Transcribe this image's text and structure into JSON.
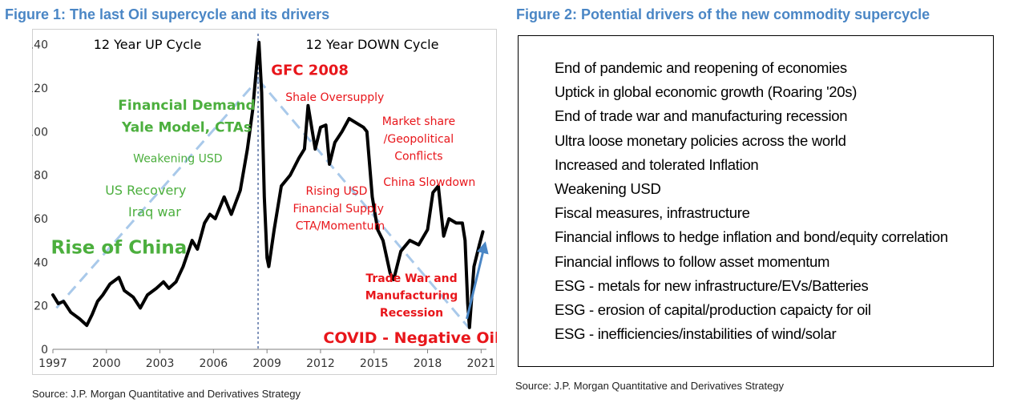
{
  "figure1": {
    "title": "Figure 1: The last Oil supercycle and its drivers",
    "source": "Source: J.P. Morgan Quantitative and Derivatives Strategy"
  },
  "figure2": {
    "title": "Figure 2: Potential drivers of the new commodity supercycle",
    "source": "Source: J.P. Morgan Quantitative and Derivatives Strategy",
    "items": [
      "End of pandemic and reopening of economies",
      "Uptick in global economic growth (Roaring '20s)",
      "End of trade war and manufacturing recession",
      "Ultra loose monetary policies across the world",
      "Increased and tolerated Inflation",
      "Weakening USD",
      "Fiscal measures, infrastructure",
      "Financial inflows to hedge inflation and bond/equity correlation",
      "Financial inflows to follow asset momentum",
      "ESG - metals for new infrastructure/EVs/Batteries",
      "ESG - erosion of capital/production capaicty for oil",
      "ESG - inefficiencies/instabilities of wind/solar"
    ]
  },
  "chart_data": {
    "type": "line",
    "title": "",
    "xlabel": "",
    "ylabel": "",
    "xlim": [
      1997,
      2021.3
    ],
    "ylim": [
      0,
      145
    ],
    "x_ticks": [
      1997,
      2000,
      2003,
      2006,
      2009,
      2012,
      2015,
      2018,
      2021
    ],
    "y_ticks": [
      0,
      20,
      40,
      60,
      80,
      100,
      120,
      140
    ],
    "grid": false,
    "legend": "none",
    "colors": {
      "price": "#000000",
      "green": "#4caf3e",
      "red": "#e8161b",
      "trend": "#a9c9ea",
      "divider": "#2e4f8f",
      "arrow": "#4a86c5"
    },
    "series": [
      {
        "x": [
          1997.0,
          1997.3,
          1997.6,
          1998.0,
          1998.5,
          1998.9,
          1999.2,
          1999.5,
          1999.8,
          2000.2,
          2000.7,
          2001.0,
          2001.5,
          2001.9,
          2002.3,
          2002.8,
          2003.2,
          2003.5,
          2003.9,
          2004.3,
          2004.8,
          2005.1,
          2005.5,
          2005.8,
          2006.1,
          2006.6,
          2007.0,
          2007.5,
          2007.9,
          2008.2,
          2008.45,
          2008.55,
          2008.7,
          2008.85,
          2009.0,
          2009.1,
          2009.4,
          2009.8,
          2010.3,
          2010.8,
          2011.1,
          2011.3,
          2011.7,
          2012.0,
          2012.3,
          2012.5,
          2012.8,
          2013.2,
          2013.6,
          2014.0,
          2014.4,
          2014.6,
          2014.9,
          2015.2,
          2015.5,
          2015.9,
          2016.1,
          2016.5,
          2017.0,
          2017.5,
          2018.0,
          2018.3,
          2018.6,
          2018.9,
          2019.2,
          2019.6,
          2019.95,
          2020.1,
          2020.25,
          2020.35,
          2020.6,
          2020.9,
          2021.1
        ],
        "values": [
          25,
          21,
          22,
          17,
          14,
          11,
          16,
          22,
          25,
          30,
          33,
          27,
          24,
          19,
          25,
          28,
          31,
          28,
          31,
          38,
          50,
          46,
          58,
          62,
          60,
          70,
          62,
          73,
          92,
          110,
          133,
          141,
          118,
          70,
          42,
          38,
          55,
          75,
          80,
          88,
          92,
          112,
          92,
          102,
          103,
          85,
          95,
          100,
          106,
          104,
          102,
          100,
          70,
          55,
          50,
          35,
          32,
          45,
          50,
          48,
          55,
          72,
          75,
          52,
          60,
          58,
          58,
          50,
          21,
          10,
          38,
          48,
          54
        ]
      }
    ],
    "trend_lines": [
      {
        "x": [
          1997.2,
          2008.5
        ],
        "values": [
          19,
          124
        ]
      },
      {
        "x": [
          2008.5,
          2020.3
        ],
        "values": [
          124,
          10
        ]
      }
    ],
    "divider_x": 2008.5,
    "rebound_arrow": {
      "x": [
        2020.2,
        2021.2
      ],
      "values": [
        14,
        48
      ]
    },
    "annotations": [
      {
        "text": "12 Year UP Cycle",
        "x": 2002.3,
        "y": 138,
        "color": "black",
        "bold": false,
        "size": 16
      },
      {
        "text": "12 Year DOWN Cycle",
        "x": 2014.9,
        "y": 138,
        "color": "black",
        "bold": false,
        "size": 16
      },
      {
        "text": "GFC 2008",
        "x": 2011.4,
        "y": 126,
        "color": "red",
        "bold": true,
        "size": 18
      },
      {
        "text": "Shale Oversupply",
        "x": 2012.8,
        "y": 114,
        "color": "red",
        "bold": false,
        "size": 14
      },
      {
        "text": "Market share",
        "x": 2017.5,
        "y": 103,
        "color": "red",
        "bold": false,
        "size": 14
      },
      {
        "text": "/Geopolitical",
        "x": 2017.5,
        "y": 95,
        "color": "red",
        "bold": false,
        "size": 14
      },
      {
        "text": "Conflicts",
        "x": 2017.5,
        "y": 87,
        "color": "red",
        "bold": false,
        "size": 14
      },
      {
        "text": "China Slowdown",
        "x": 2018.1,
        "y": 75,
        "color": "red",
        "bold": false,
        "size": 14
      },
      {
        "text": "Rising USD",
        "x": 2012.9,
        "y": 71,
        "color": "red",
        "bold": false,
        "size": 14
      },
      {
        "text": "Financial Supply",
        "x": 2013.0,
        "y": 63,
        "color": "red",
        "bold": false,
        "size": 14
      },
      {
        "text": "CTA/Momentum",
        "x": 2013.1,
        "y": 55,
        "color": "red",
        "bold": false,
        "size": 14
      },
      {
        "text": "Trade War and",
        "x": 2017.1,
        "y": 31,
        "color": "red",
        "bold": true,
        "size": 14
      },
      {
        "text": "Manufacturing",
        "x": 2017.1,
        "y": 23,
        "color": "red",
        "bold": true,
        "size": 14
      },
      {
        "text": "Recession",
        "x": 2017.1,
        "y": 15,
        "color": "red",
        "bold": true,
        "size": 14
      },
      {
        "text": "COVID - Negative Oil",
        "x": 2017.1,
        "y": 3,
        "color": "red",
        "bold": true,
        "size": 19
      },
      {
        "text": "Financial Demand",
        "x": 2004.5,
        "y": 110,
        "color": "green",
        "bold": true,
        "size": 17
      },
      {
        "text": "Yale Model, CTAs",
        "x": 2004.5,
        "y": 100,
        "color": "green",
        "bold": true,
        "size": 17
      },
      {
        "text": "Weakening USD",
        "x": 2004.0,
        "y": 86,
        "color": "green",
        "bold": false,
        "size": 14
      },
      {
        "text": "US Recovery",
        "x": 2002.2,
        "y": 71,
        "color": "green",
        "bold": false,
        "size": 16
      },
      {
        "text": "Iraq war",
        "x": 2002.7,
        "y": 61,
        "color": "green",
        "bold": false,
        "size": 16
      },
      {
        "text": "Rise of China",
        "x": 2000.7,
        "y": 44,
        "color": "green",
        "bold": true,
        "size": 23
      }
    ]
  }
}
